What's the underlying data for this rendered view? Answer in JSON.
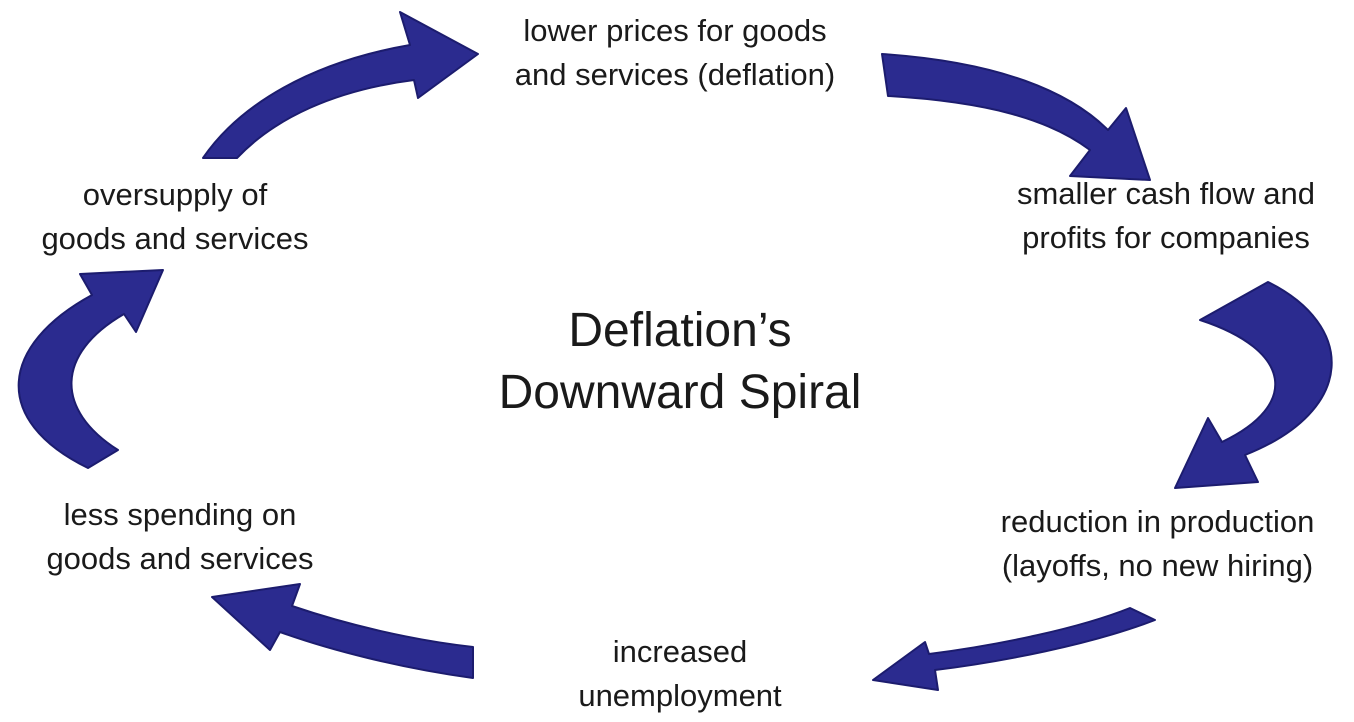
{
  "colors": {
    "arrow": "#2b2b8f",
    "arrow_edge": "#1c1c6e",
    "text": "#1a1a1a",
    "background": "#ffffff"
  },
  "title": {
    "line1": "Deflation’s",
    "line2": "Downward Spiral"
  },
  "nodes": {
    "top": {
      "line1": "lower prices for goods",
      "line2": "and services (deflation)"
    },
    "right_upper": {
      "line1": "smaller cash flow and",
      "line2": "profits for companies"
    },
    "right_lower": {
      "line1": "reduction in production",
      "line2": "(layoffs, no new hiring)"
    },
    "bottom": {
      "line1": "increased",
      "line2": "unemployment"
    },
    "left_lower": {
      "line1": "less spending on",
      "line2": "goods and services"
    },
    "left_upper": {
      "line1": "oversupply of",
      "line2": "goods and services"
    }
  }
}
